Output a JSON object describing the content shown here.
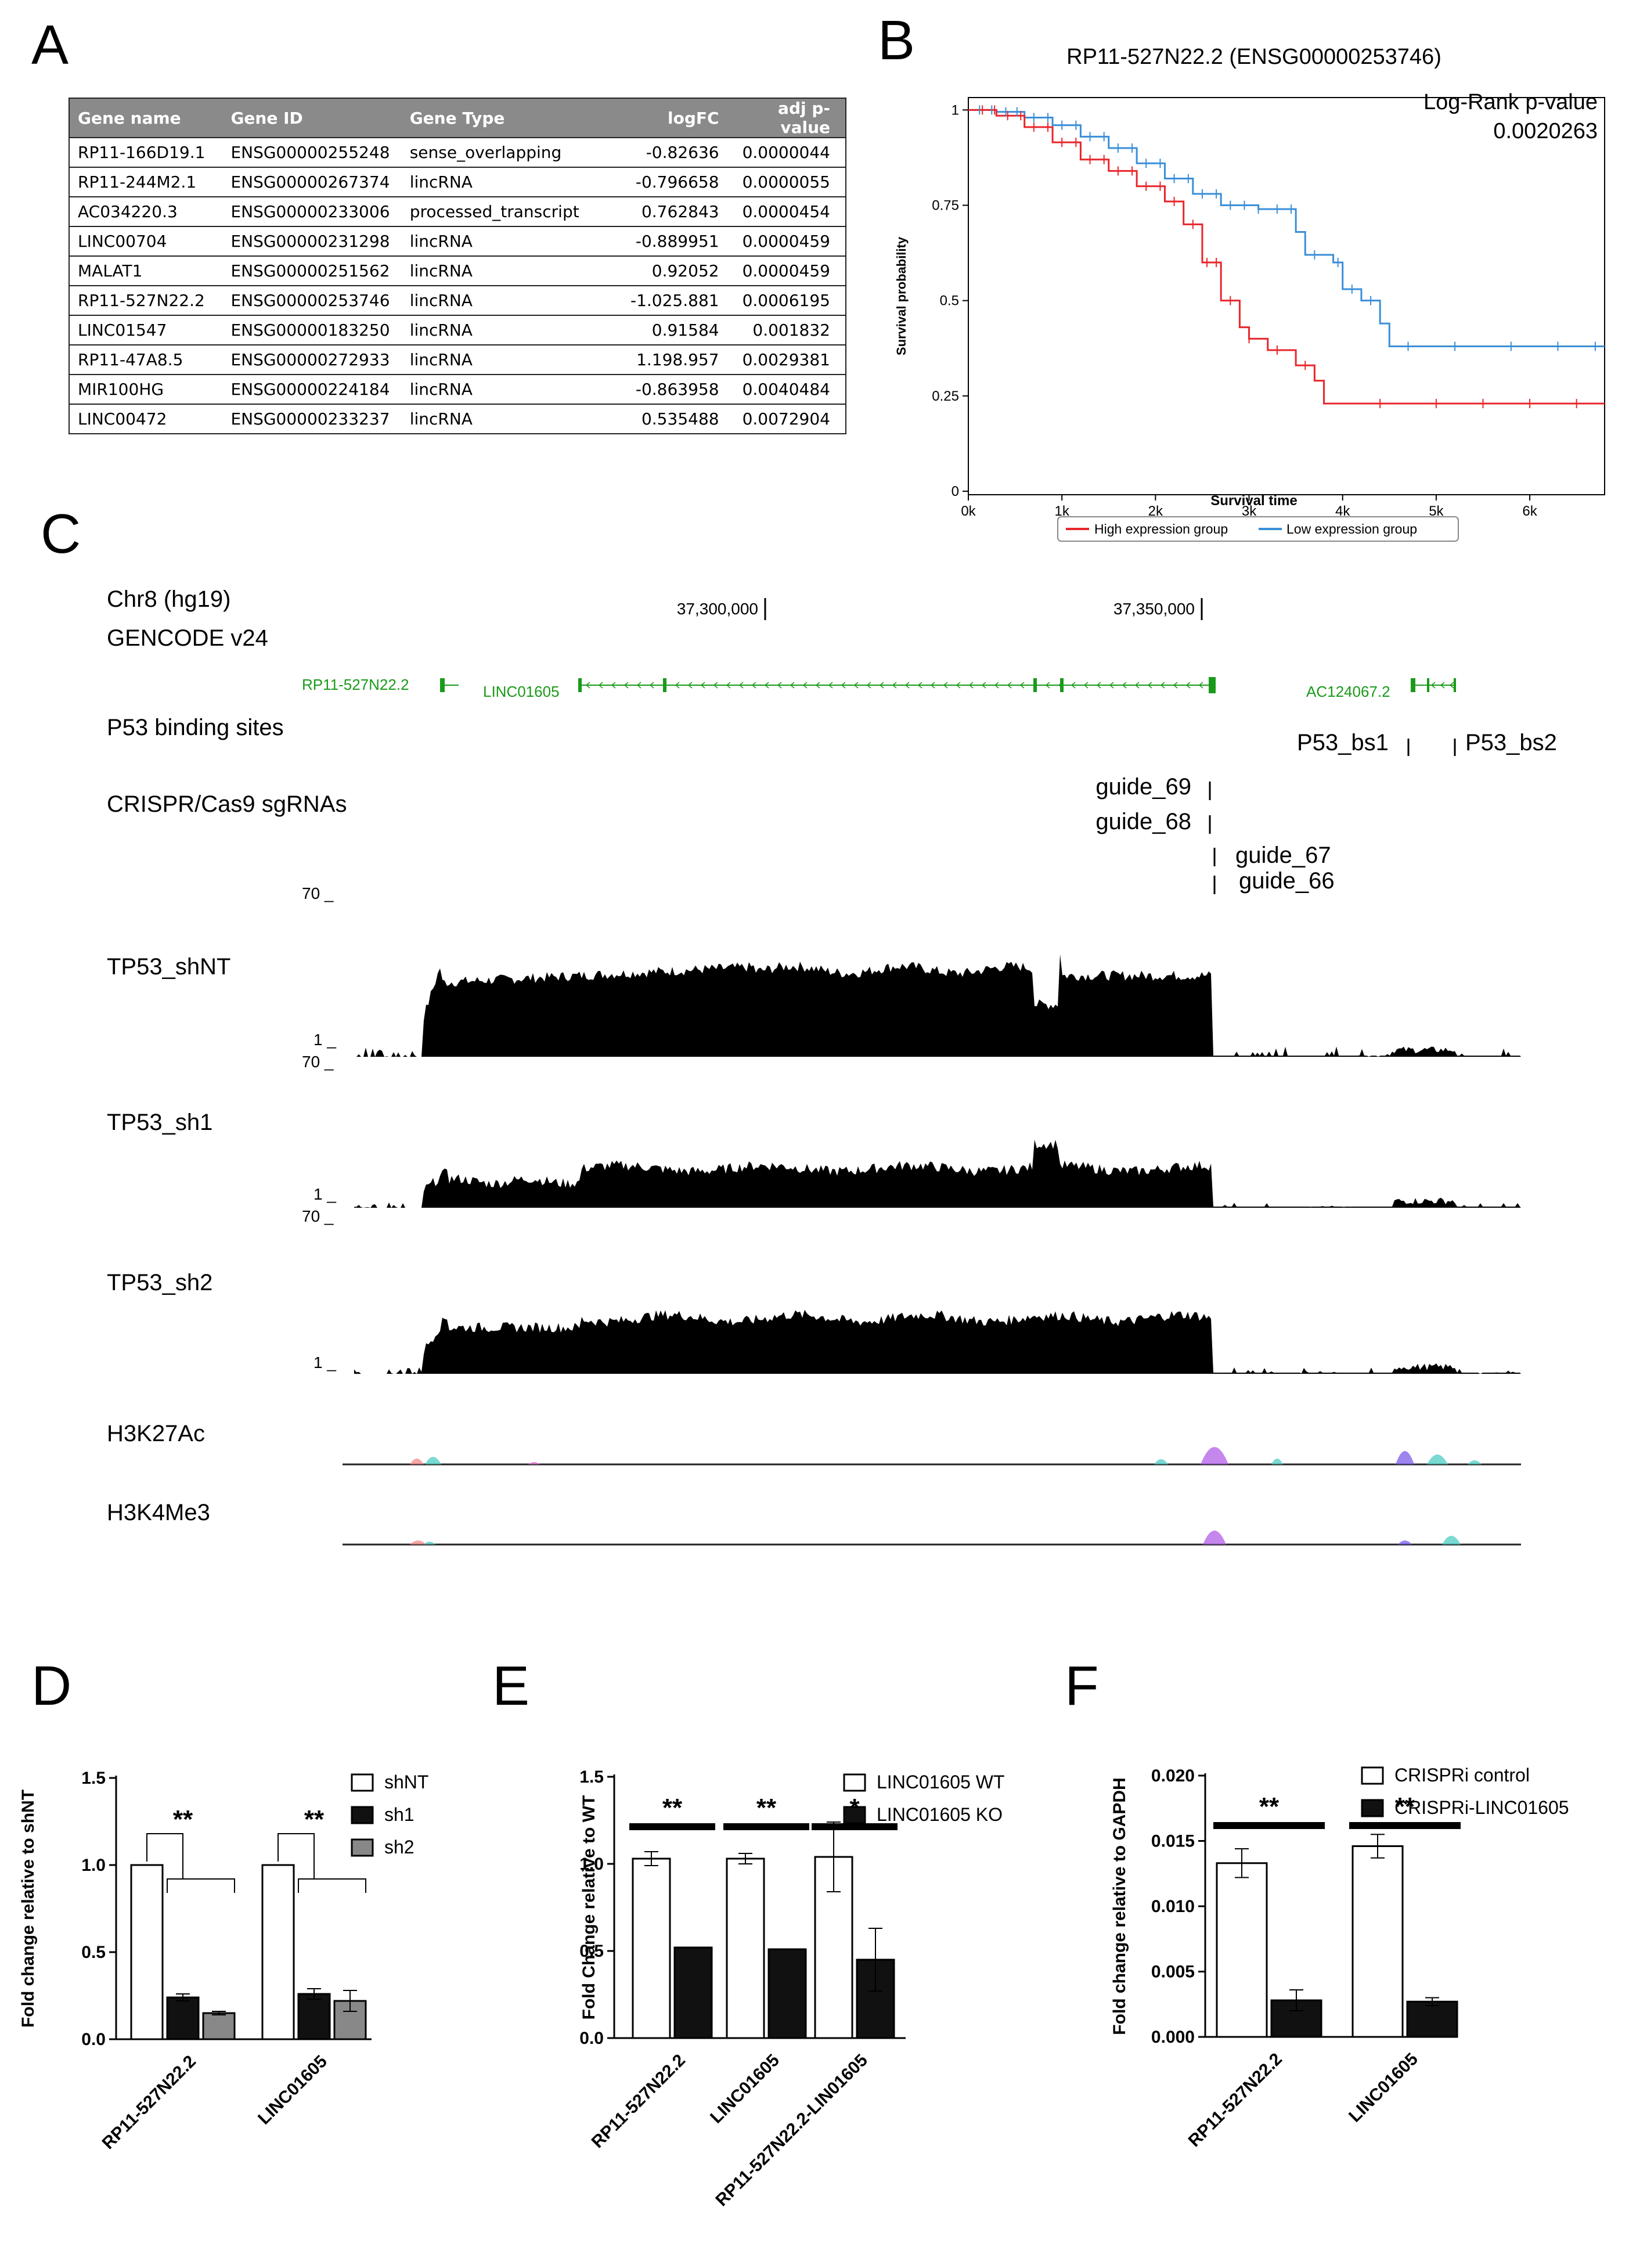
{
  "panels": {
    "a": "A",
    "b": "B",
    "c": "C",
    "d": "D",
    "e": "E",
    "f": "F"
  },
  "table": {
    "headers": [
      "Gene name",
      "Gene ID",
      "Gene Type",
      "logFC",
      "adj p-value"
    ],
    "rows": [
      [
        "RP11-166D19.1",
        "ENSG00000255248",
        "sense_overlapping",
        "-0.82636",
        "0.0000044"
      ],
      [
        "RP11-244M2.1",
        "ENSG00000267374",
        "lincRNA",
        "-0.796658",
        "0.0000055"
      ],
      [
        "AC034220.3",
        "ENSG00000233006",
        "processed_transcript",
        "0.762843",
        "0.0000454"
      ],
      [
        "LINC00704",
        "ENSG00000231298",
        "lincRNA",
        "-0.889951",
        "0.0000459"
      ],
      [
        "MALAT1",
        "ENSG00000251562",
        "lincRNA",
        "0.92052",
        "0.0000459"
      ],
      [
        "RP11-527N22.2",
        "ENSG00000253746",
        "lincRNA",
        "-1.025.881",
        "0.0006195"
      ],
      [
        "LINC01547",
        "ENSG00000183250",
        "lincRNA",
        "0.91584",
        "0.001832"
      ],
      [
        "RP11-47A8.5",
        "ENSG00000272933",
        "lincRNA",
        "1.198.957",
        "0.0029381"
      ],
      [
        "MIR100HG",
        "ENSG00000224184",
        "lincRNA",
        "-0.863958",
        "0.0040484"
      ],
      [
        "LINC00472",
        "ENSG00000233237",
        "lincRNA",
        "0.535488",
        "0.0072904"
      ]
    ]
  },
  "survival": {
    "title": "RP11-527N22.2 (ENSG00000253746)",
    "pvalue_label": "Log-Rank p-value",
    "pvalue": "0.0020263",
    "ylabel": "Survival probability",
    "xlabel": "Survival time",
    "yticks": [
      "0",
      "0.25",
      "0.5",
      "0.75",
      "1"
    ],
    "xticks": [
      "0k",
      "1k",
      "2k",
      "3k",
      "4k",
      "5k",
      "6k"
    ],
    "legend_high": "High expression group",
    "legend_low": "Low expression group",
    "color_high": "#e8262b",
    "color_low": "#3a8fd8"
  },
  "browser": {
    "assembly": "Chr8 (hg19)",
    "gencode": "GENCODE v24",
    "coord1": "37,300,000",
    "coord2": "37,350,000",
    "genes": [
      "RP11-527N22.2",
      "LINC01605",
      "AC124067.2"
    ],
    "gene_color": "#1a9a1a",
    "p53_track": "P53 binding sites",
    "p53_bs1": "P53_bs1",
    "p53_bs2": "P53_bs2",
    "crispr_track": "CRISPR/Cas9 sgRNAs",
    "guides": [
      "guide_69",
      "guide_68",
      "guide_67",
      "guide_66"
    ],
    "scale_max": "70 _",
    "scale_min": "1 _",
    "tracks": [
      "TP53_shNT",
      "TP53_sh1",
      "TP53_sh2"
    ],
    "histone_tracks": [
      "H3K27Ac",
      "H3K4Me3"
    ]
  },
  "chart_data": [
    {
      "type": "bar",
      "panel": "D",
      "ylabel": "Fold change relative to shNT",
      "categories": [
        "RP11-527N22.2",
        "LINC01605"
      ],
      "series": [
        {
          "name": "shNT",
          "values": [
            1.0,
            1.0
          ],
          "errors": [
            0,
            0
          ]
        },
        {
          "name": "sh1",
          "values": [
            0.24,
            0.26
          ],
          "errors": [
            0.02,
            0.03
          ]
        },
        {
          "name": "sh2",
          "values": [
            0.15,
            0.22
          ],
          "errors": [
            0.01,
            0.06
          ]
        }
      ],
      "ylim": [
        0,
        1.5
      ],
      "yticks": [
        "0.0",
        "0.5",
        "1.0",
        "1.5"
      ],
      "significance": [
        "**",
        "**"
      ]
    },
    {
      "type": "bar",
      "panel": "E",
      "ylabel": "Fold Change relative to WT",
      "categories": [
        "RP11-527N22.2",
        "LINC01605",
        "RP11-527N22.2-LIN01605"
      ],
      "series": [
        {
          "name": "LINC01605 WT",
          "values": [
            1.03,
            1.03,
            1.04
          ],
          "errors": [
            0.04,
            0.03,
            0.2
          ]
        },
        {
          "name": "LINC01605 KO",
          "values": [
            0.52,
            0.51,
            0.45
          ],
          "errors": [
            0,
            0,
            0.18
          ]
        }
      ],
      "ylim": [
        0,
        1.5
      ],
      "yticks": [
        "0.0",
        "0.5",
        "1.0",
        "1.5"
      ],
      "significance": [
        "**",
        "**",
        "*"
      ]
    },
    {
      "type": "bar",
      "panel": "F",
      "ylabel": "Fold change relative to GAPDH",
      "categories": [
        "RP11-527N22.2",
        "LINC01605"
      ],
      "series": [
        {
          "name": "CRISPRi control",
          "values": [
            0.0133,
            0.0146
          ],
          "errors": [
            0.0011,
            0.0009
          ]
        },
        {
          "name": "CRISPRi-LINC01605",
          "values": [
            0.0028,
            0.0027
          ],
          "errors": [
            0.0008,
            0.0003
          ]
        }
      ],
      "ylim": [
        0,
        0.02
      ],
      "yticks": [
        "0.000",
        "0.005",
        "0.010",
        "0.015",
        "0.020"
      ],
      "significance": [
        "**",
        "**"
      ]
    }
  ]
}
